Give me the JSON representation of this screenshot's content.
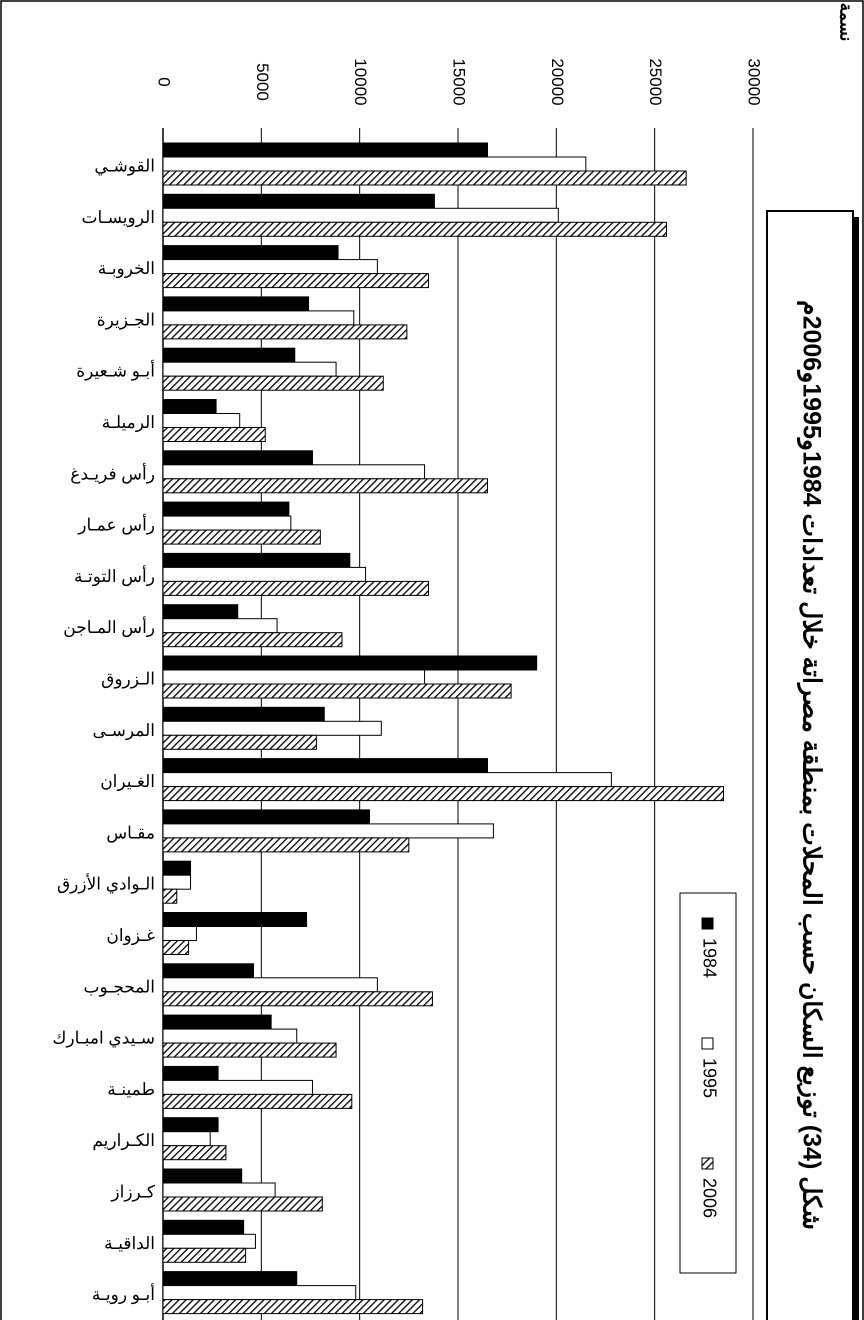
{
  "chart_data": {
    "type": "bar",
    "orientation": "horizontal",
    "title": "شكل (34) توزيع السكان حسب المحلات بمنطقة مصراتة خلال تعدادات 1984و1995و2006م",
    "y_label": "نسمة",
    "categories": [
      "القوشـي",
      "الرويسـات",
      "الخروبـة",
      "الجـزيرة",
      "أبـو شـعيرة",
      "الرميلـة",
      "رأس فريـدغ",
      "رأس عمـار",
      "رأس التوتـة",
      "رأس المـاجن",
      "الـزروق",
      "المرسـى",
      "الغـيران",
      "مقـاس",
      "الـوادي الأزرق",
      "غـزوان",
      "المحجـوب",
      "سـيدي امبـارك",
      "طمينـة",
      "الكـراريم",
      "كـرزاز",
      "الداقيـة",
      "أبـو رويـة"
    ],
    "series": [
      {
        "name": "1984",
        "color": "#000000",
        "values": [
          16500,
          13800,
          8900,
          7400,
          6700,
          2700,
          7600,
          6400,
          9500,
          3800,
          19000,
          8200,
          16500,
          10500,
          1400,
          7300,
          4600,
          5500,
          2800,
          2800,
          4000,
          4100,
          6800
        ]
      },
      {
        "name": "1995",
        "color": "#ffffff",
        "values": [
          21500,
          20100,
          10900,
          9700,
          8800,
          3900,
          13300,
          6500,
          10300,
          5800,
          13300,
          11100,
          22800,
          16800,
          1400,
          1700,
          10900,
          6800,
          7600,
          2400,
          5700,
          4700,
          9800
        ]
      },
      {
        "name": "2006",
        "color": "#000000",
        "pattern": "diagonal-hatch",
        "values": [
          26600,
          25600,
          13500,
          12400,
          11200,
          5200,
          16500,
          8000,
          13500,
          9100,
          17700,
          7800,
          28500,
          12500,
          700,
          1300,
          13700,
          8800,
          9600,
          3200,
          8100,
          4200,
          13200
        ]
      }
    ],
    "xlim": [
      0,
      30000
    ],
    "xticks": [
      0,
      5000,
      10000,
      15000,
      20000,
      25000,
      30000
    ],
    "grid": true
  }
}
